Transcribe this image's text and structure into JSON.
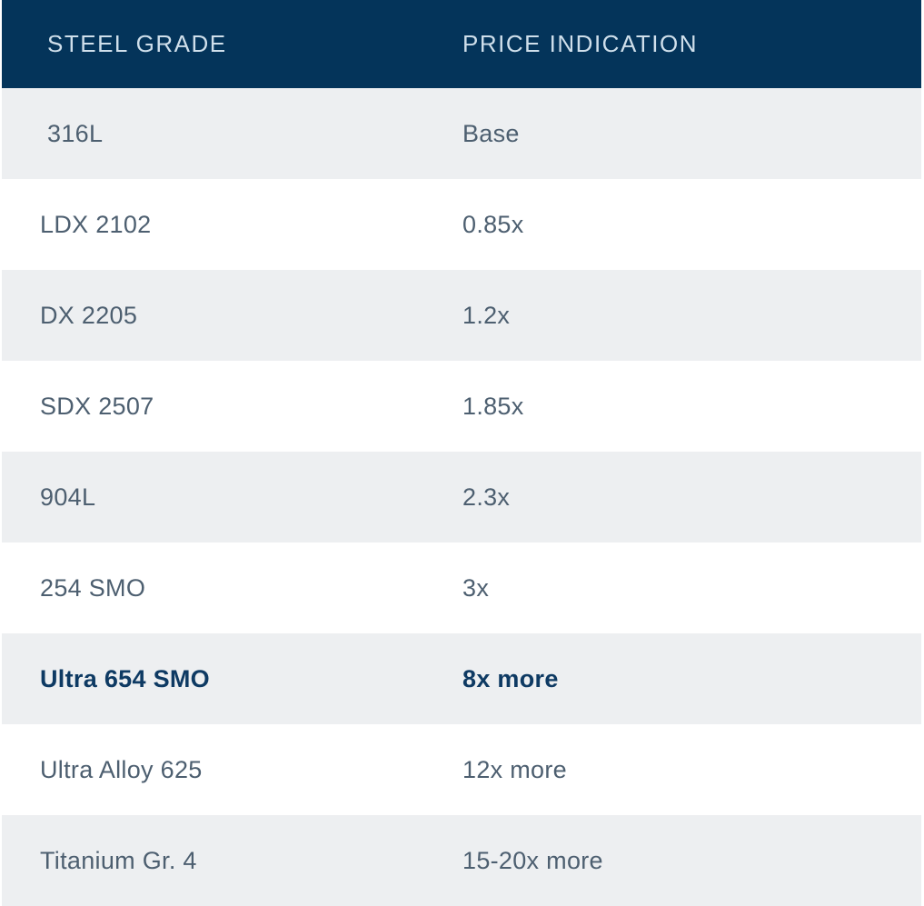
{
  "chart_data": {
    "type": "table",
    "title": "",
    "columns": [
      "STEEL GRADE",
      "PRICE INDICATION"
    ],
    "rows": [
      [
        "316L",
        "Base"
      ],
      [
        "LDX 2102",
        "0.85x"
      ],
      [
        "DX 2205",
        "1.2x"
      ],
      [
        "SDX 2507",
        "1.85x"
      ],
      [
        "904L",
        "2.3x"
      ],
      [
        "254 SMO",
        "3x"
      ],
      [
        "Ultra 654 SMO",
        "8x more"
      ],
      [
        "Ultra Alloy 625",
        "12x more"
      ],
      [
        "Titanium Gr. 4",
        "15-20x more"
      ]
    ],
    "emphasized_row_index": 6,
    "emphasized_row": {
      "grade": "Ultra 654 SMO",
      "price": "8x more"
    }
  },
  "colors": {
    "header_bg": "#04345a",
    "header_text": "#cfdfeb",
    "row_bg": "#ffffff",
    "row_alt_bg": "#edeff1",
    "body_text": "#4d5f70",
    "emphasis_text": "#0e3a63"
  }
}
